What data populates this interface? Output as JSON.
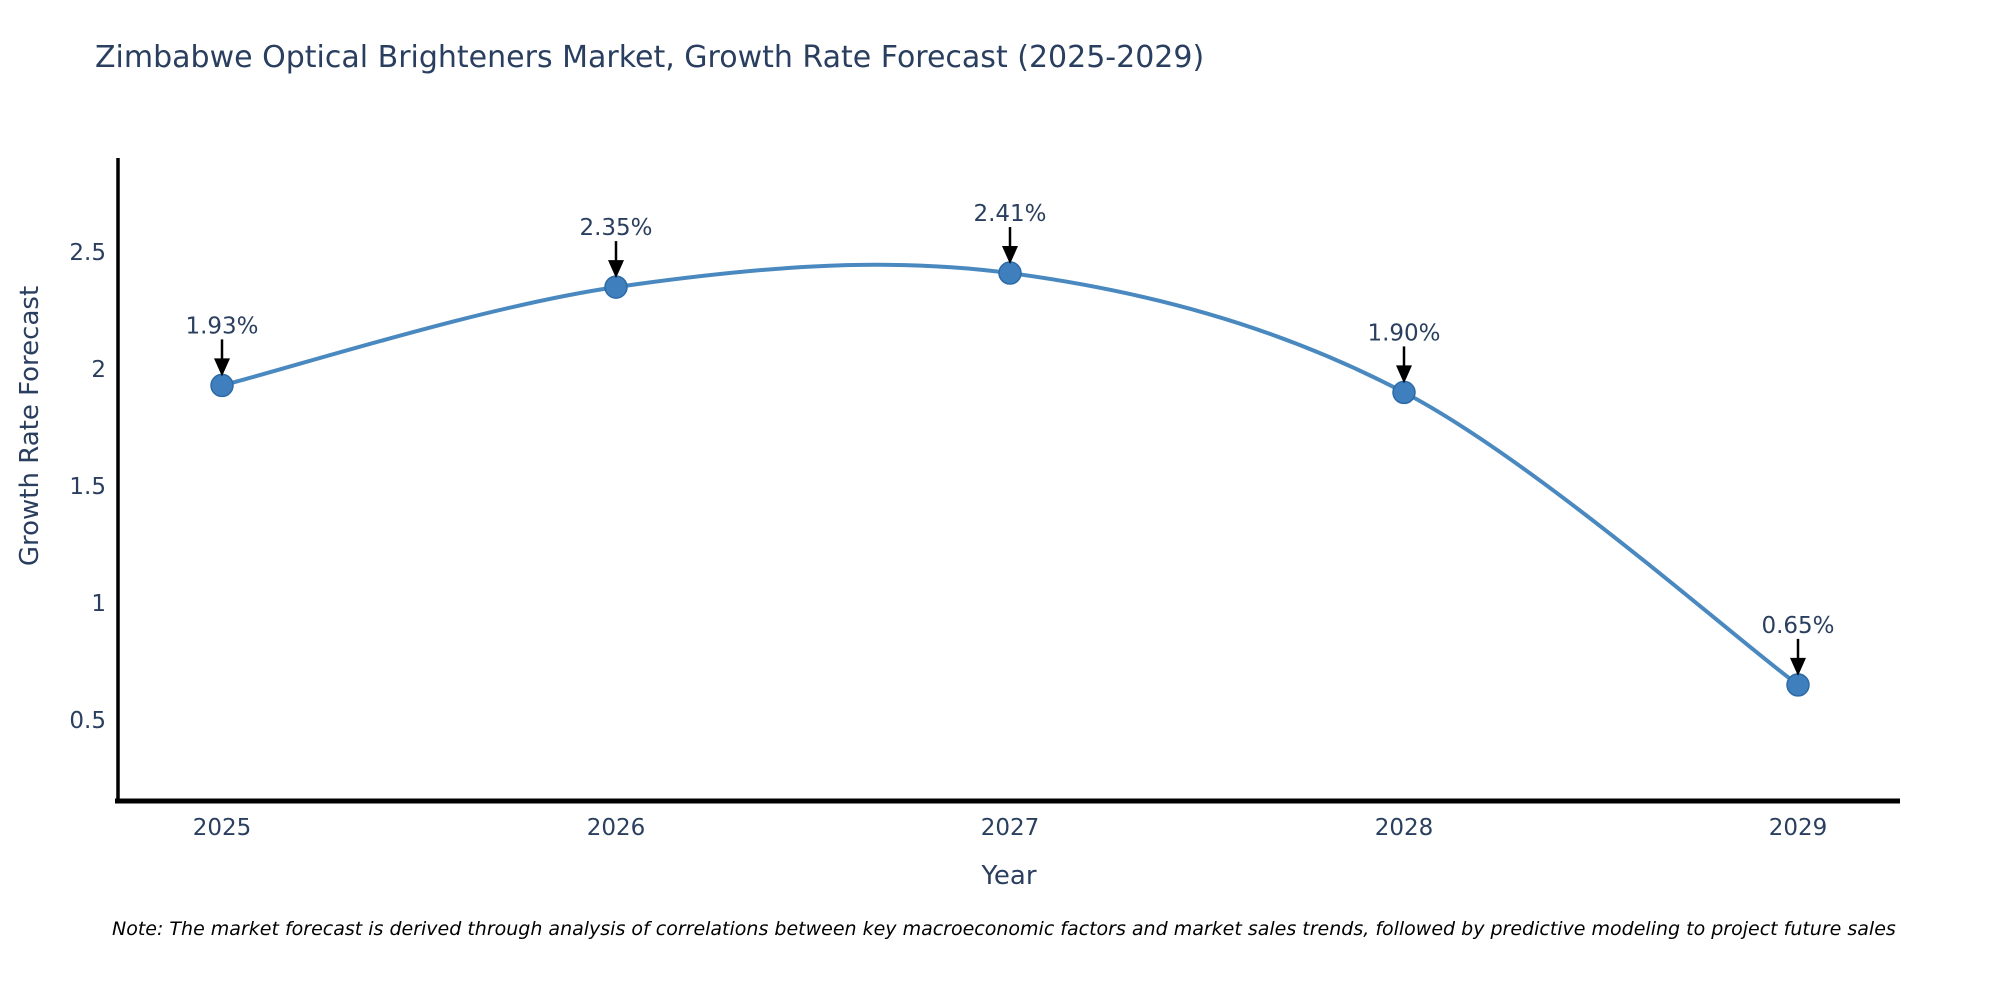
{
  "chart_data": {
    "type": "line",
    "title": "Zimbabwe Optical Brighteners Market, Growth Rate Forecast (2025-2029)",
    "xlabel": "Year",
    "ylabel": "Growth Rate Forecast",
    "categories": [
      "2025",
      "2026",
      "2027",
      "2028",
      "2029"
    ],
    "values": [
      1.93,
      2.35,
      2.41,
      1.9,
      0.65
    ],
    "point_labels": [
      "1.93%",
      "2.35%",
      "2.41%",
      "1.90%",
      "0.65%"
    ],
    "yticks": [
      0.5,
      1,
      1.5,
      2,
      2.5
    ],
    "ytick_labels": [
      "0.5",
      "1",
      "1.5",
      "2",
      "2.5"
    ],
    "ylim": [
      0.15,
      2.9
    ],
    "grid": false,
    "legend_position": "none",
    "line_style": "smooth-spline",
    "line_color": "#4a89c0",
    "marker_color": "#3f7fbd",
    "marker_edge_color": "#2d6ba6",
    "annotation_arrow_color": "#000000",
    "axis_color": "#000000",
    "text_color": "#2a3f5f"
  },
  "note": {
    "text": "Note: The market forecast is derived through analysis of correlations between key macroeconomic factors and market sales trends, followed by predictive modeling to project future sales"
  }
}
